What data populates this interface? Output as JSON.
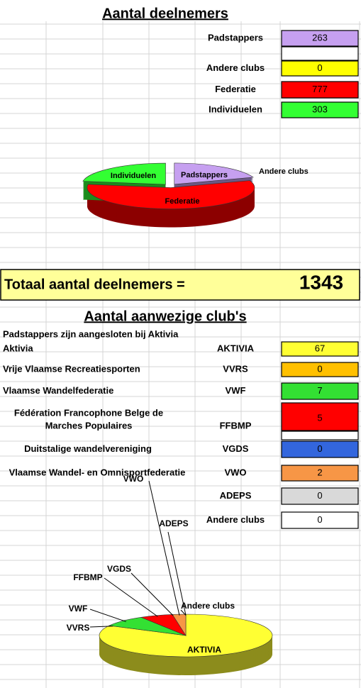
{
  "section1": {
    "title": "Aantal deelnemers",
    "rows": [
      {
        "label": "Padstappers",
        "value": 263,
        "color": "#c6a0f0"
      },
      {
        "label": "Andere clubs",
        "value": 0,
        "color": "#ffff00"
      },
      {
        "label": "Federatie",
        "value": 777,
        "color": "#ff0000"
      },
      {
        "label": "Individuelen",
        "value": 303,
        "color": "#33ff33"
      }
    ],
    "total_label": "Totaal aantal deelnemers =",
    "total": 1343
  },
  "section2": {
    "title": "Aantal aanwezige club's",
    "note": "Padstappers  zijn aangesloten bij Aktivia",
    "rows": [
      {
        "name": "Aktivia",
        "code": "AKTIVIA",
        "value": 67,
        "color": "#ffff33"
      },
      {
        "name": "Vrije Vlaamse Recreatiesporten",
        "code": "VVRS",
        "value": 0,
        "color": "#ffc000"
      },
      {
        "name": "Vlaamse Wandelfederatie",
        "code": "VWF",
        "value": 7,
        "color": "#33e033"
      },
      {
        "name": [
          "Fédération Francophone Belge de",
          "Marches Populaires"
        ],
        "code": "FFBMP",
        "value": 5,
        "color": "#ff0000"
      },
      {
        "name": "Duitstalige wandelvereniging",
        "code": "VGDS",
        "value": 0,
        "color": "#3366dd"
      },
      {
        "name": "Vlaamse Wandel- en Omnisportfederatie",
        "code": "VWO",
        "value": 2,
        "color": "#f79646"
      },
      {
        "code": "ADEPS",
        "value": 0,
        "color": "#d9d9d9"
      },
      {
        "code": "Andere clubs",
        "value": 0,
        "color": "#ffffff"
      }
    ]
  }
}
